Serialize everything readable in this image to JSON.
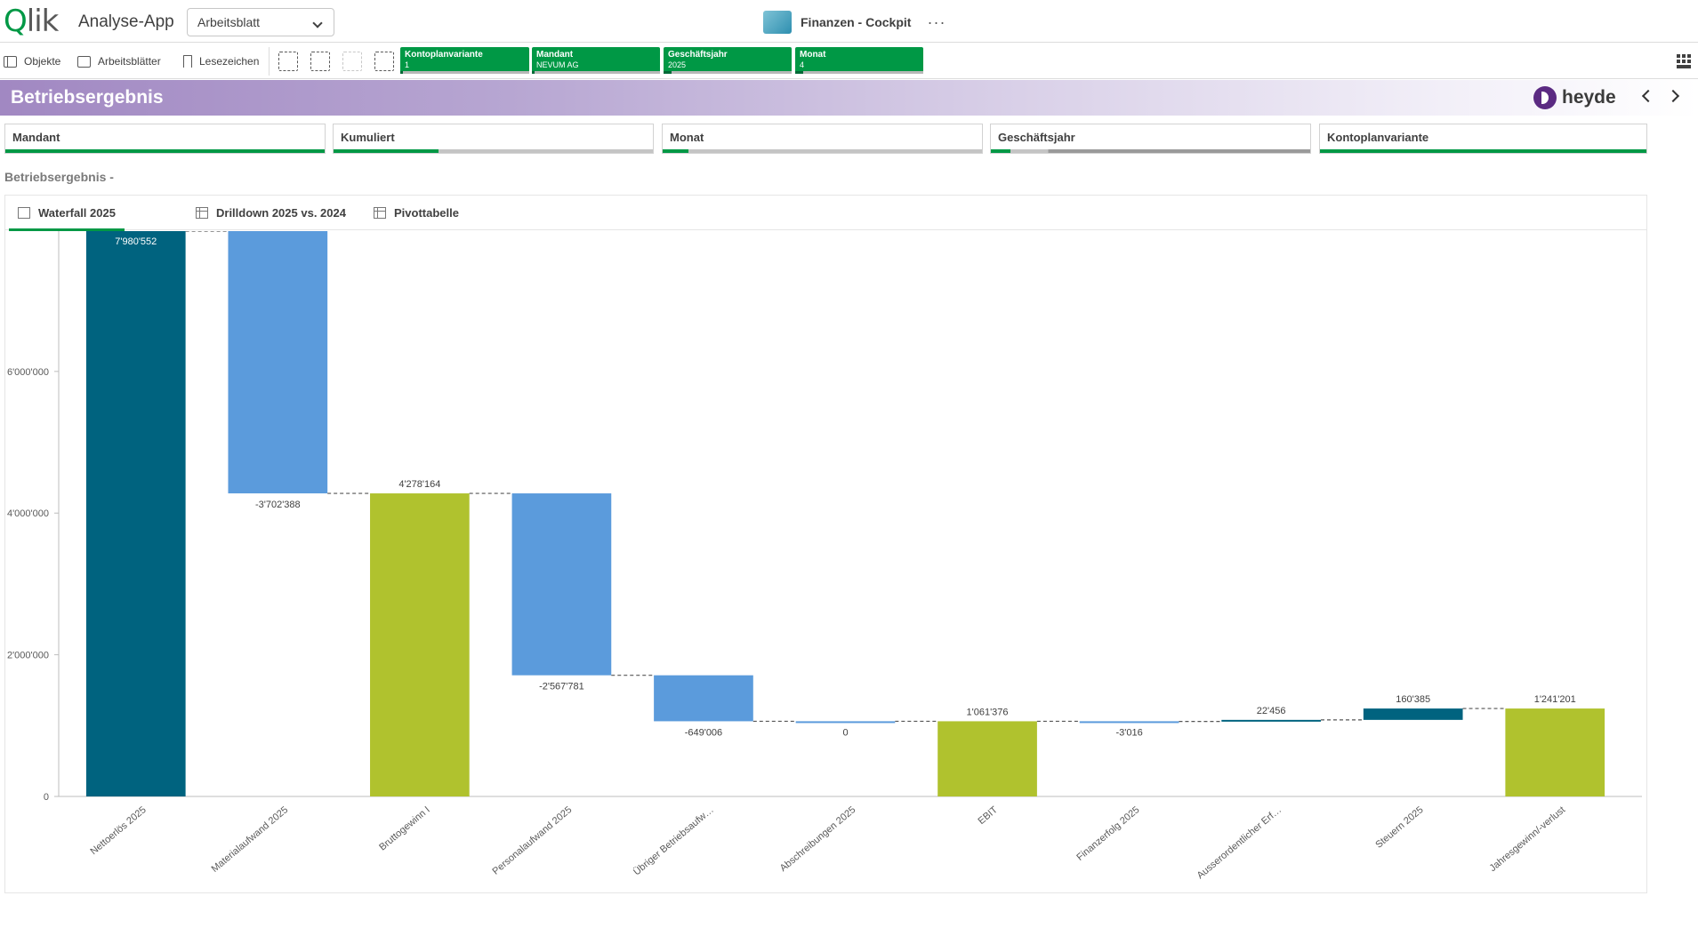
{
  "app": {
    "logo": "Qlik",
    "name": "Analyse-App",
    "sheet_select": "Arbeitsblatt",
    "center_title": "Finanzen - Cockpit",
    "more": "···"
  },
  "toolbar": {
    "objects": "Objekte",
    "sheets": "Arbeitsblätter",
    "bookmarks": "Lesezeichen",
    "chips": [
      {
        "field": "Kontoplanvariante",
        "value": "1",
        "fill": 0.02
      },
      {
        "field": "Mandant",
        "value": "NEVUM AG",
        "fill": 0.02
      },
      {
        "field": "Geschäftsjahr",
        "value": "2025",
        "fill": 0.06
      },
      {
        "field": "Monat",
        "value": "4",
        "fill": 0.06
      }
    ]
  },
  "header": {
    "title": "Betriebsergebnis",
    "brand": "heyde"
  },
  "filters": [
    {
      "label": "Mandant",
      "fill": 1.0
    },
    {
      "label": "Kumuliert",
      "fill": 0.33
    },
    {
      "label": "Monat",
      "fill": 0.08
    },
    {
      "label": "Geschäftsjahr",
      "fill": 0.06
    },
    {
      "label": "Kontoplanvariante",
      "fill": 1.0
    }
  ],
  "section_label": "Betriebsergebnis -",
  "tabs": [
    {
      "label": "Waterfall 2025"
    },
    {
      "label": "Drilldown 2025 vs. 2024"
    },
    {
      "label": "Pivottabelle"
    }
  ],
  "colors": {
    "total_dark": "#00637f",
    "negative": "#5b9bdc",
    "subtotal": "#b0c22e",
    "positive": "#00637f",
    "accent": "#009845"
  },
  "chart_data": {
    "type": "bar",
    "subtype": "waterfall",
    "ylim": [
      0,
      7980552
    ],
    "y_ticks": [
      {
        "value": 0,
        "label": "0"
      },
      {
        "value": 2000000,
        "label": "2'000'000"
      },
      {
        "value": 4000000,
        "label": "4'000'000"
      },
      {
        "value": 6000000,
        "label": "6'000'000"
      }
    ],
    "bars": [
      {
        "category": "Nettoerlös 2025",
        "start": 0,
        "end": 7980552,
        "label": "7'980'552",
        "kind": "total"
      },
      {
        "category": "Materialaufwand 2025",
        "start": 7980552,
        "end": 4278164,
        "label": "-3'702'388",
        "kind": "negative"
      },
      {
        "category": "Bruttogewinn I",
        "start": 0,
        "end": 4278164,
        "label": "4'278'164",
        "kind": "subtotal"
      },
      {
        "category": "Personalaufwand 2025",
        "start": 4278164,
        "end": 1710383,
        "label": "-2'567'781",
        "kind": "negative"
      },
      {
        "category": "Übriger Betriebsaufw…",
        "start": 1710383,
        "end": 1061377,
        "label": "-649'006",
        "kind": "negative"
      },
      {
        "category": "Abschreibungen 2025",
        "start": 1061377,
        "end": 1061377,
        "label": "0",
        "kind": "negative"
      },
      {
        "category": "EBIT",
        "start": 0,
        "end": 1061376,
        "label": "1'061'376",
        "kind": "subtotal"
      },
      {
        "category": "Finanzerfolg 2025",
        "start": 1061376,
        "end": 1058360,
        "label": "-3'016",
        "kind": "negative"
      },
      {
        "category": "Ausserordentlicher Erf…",
        "start": 1058360,
        "end": 1080816,
        "label": "22'456",
        "kind": "positive"
      },
      {
        "category": "Steuern 2025",
        "start": 1080816,
        "end": 1241201,
        "label": "160'385",
        "kind": "positive"
      },
      {
        "category": "Jahresgewinn/-verlust",
        "start": 0,
        "end": 1241201,
        "label": "1'241'201",
        "kind": "subtotal"
      }
    ]
  }
}
